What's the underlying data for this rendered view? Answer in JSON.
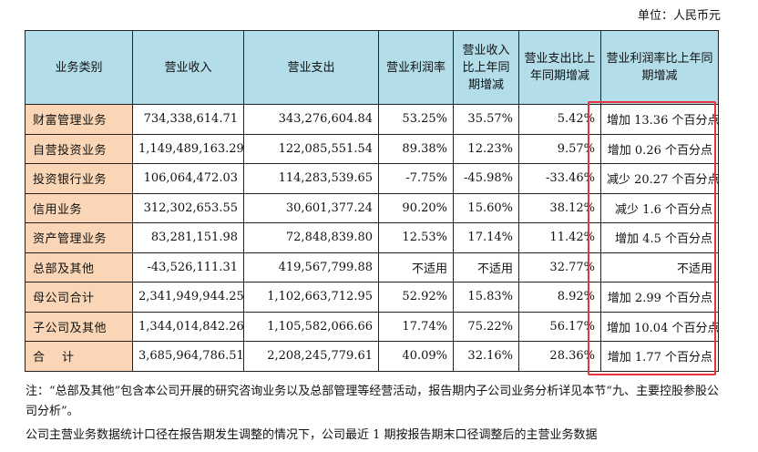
{
  "unit_label": "单位：人民币元",
  "headers": [
    "业务类别",
    "营业收入",
    "营业支出",
    "营业利润率",
    "营业收入比上年同期增减",
    "营业支出比上年同期增减",
    "营业利润率比上年同期增减"
  ],
  "rows": [
    {
      "category": "财富管理业务",
      "revenue": "734,338,614.71",
      "expense": "343,276,604.84",
      "margin": "53.25%",
      "rev_change": "35.57%",
      "exp_change": "5.42%",
      "margin_change": "增加 13.36 个百分点"
    },
    {
      "category": "自营投资业务",
      "revenue": "1,149,489,163.29",
      "expense": "122,085,551.54",
      "margin": "89.38%",
      "rev_change": "12.23%",
      "exp_change": "9.57%",
      "margin_change": "增加 0.26 个百分点"
    },
    {
      "category": "投资银行业务",
      "revenue": "106,064,472.03",
      "expense": "114,283,539.65",
      "margin": "-7.75%",
      "rev_change": "-45.98%",
      "exp_change": "-33.46%",
      "margin_change": "减少 20.27 个百分点"
    },
    {
      "category": "信用业务",
      "revenue": "312,302,653.55",
      "expense": "30,601,377.24",
      "margin": "90.20%",
      "rev_change": "15.60%",
      "exp_change": "38.12%",
      "margin_change": "减少 1.6 个百分点"
    },
    {
      "category": "资产管理业务",
      "revenue": "83,281,151.98",
      "expense": "72,848,839.80",
      "margin": "12.53%",
      "rev_change": "17.14%",
      "exp_change": "11.42%",
      "margin_change": "增加 4.5 个百分点"
    },
    {
      "category": "总部及其他",
      "revenue": "-43,526,111.31",
      "expense": "419,567,799.88",
      "margin": "不适用",
      "rev_change": "不适用",
      "exp_change": "32.77%",
      "margin_change": "不适用"
    },
    {
      "category": "母公司合计",
      "revenue": "2,341,949,944.25",
      "expense": "1,102,663,712.95",
      "margin": "52.92%",
      "rev_change": "15.83%",
      "exp_change": "8.92%",
      "margin_change": "增加 2.99 个百分点"
    },
    {
      "category": "子公司及其他",
      "revenue": "1,344,014,842.26",
      "expense": "1,105,582,066.66",
      "margin": "17.74%",
      "rev_change": "75.22%",
      "exp_change": "56.17%",
      "margin_change": "增加 10.04 个百分点"
    },
    {
      "category": "合    计",
      "revenue": "3,685,964,786.51",
      "expense": "2,208,245,779.61",
      "margin": "40.09%",
      "rev_change": "32.16%",
      "exp_change": "28.36%",
      "margin_change": "增加 1.77 个百分点"
    }
  ],
  "note": "注：“总部及其他”包含本公司开展的研究咨询业务以及总部管理等经营活动，报告期内子公司业务分析详见本节“九、主要控股参股公司分析”。",
  "note2": "公司主营业务数据统计口径在报告期发生调整的情况下，公司最近 1 期按报告期末口径调整后的主营业务数据",
  "highlight_color": "#e8323c"
}
